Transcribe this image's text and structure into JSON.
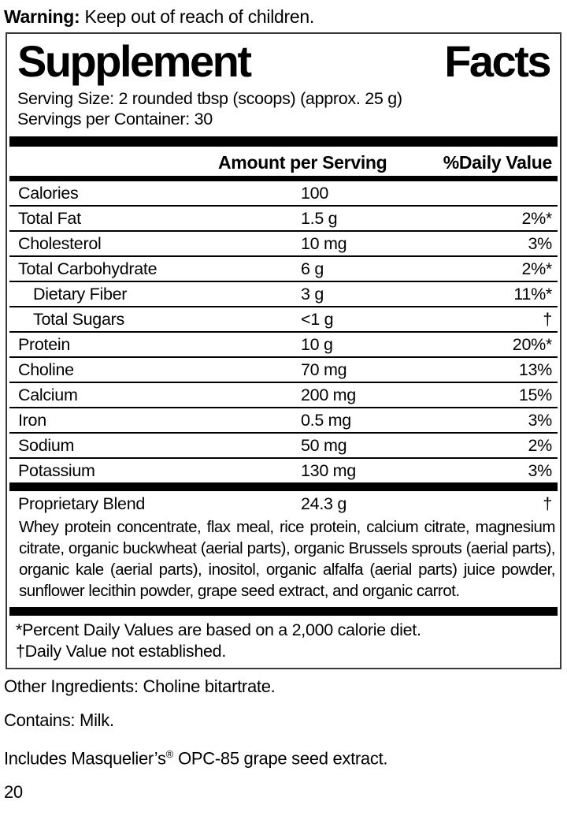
{
  "colors": {
    "text": "#000000",
    "bars": "#000000",
    "panel_border": "#3a3a3a",
    "background": "#ffffff"
  },
  "warning": {
    "label": "Warning:",
    "text": " Keep out of reach of children."
  },
  "panel": {
    "title_left": "Supplement",
    "title_right": "Facts",
    "serving_size": "Serving Size: 2 rounded tbsp (scoops) (approx. 25 g)",
    "servings_per_container": "Servings per Container: 30"
  },
  "table": {
    "header_amount": "Amount per Serving",
    "header_dv": "%Daily Value",
    "rows": [
      {
        "label": "Calories",
        "amount": "100",
        "dv": "",
        "indent": false
      },
      {
        "label": "Total Fat",
        "amount": "1.5 g",
        "dv": "2%*",
        "indent": false
      },
      {
        "label": "Cholesterol",
        "amount": "10 mg",
        "dv": "3%",
        "indent": false
      },
      {
        "label": "Total Carbohydrate",
        "amount": "6 g",
        "dv": "2%*",
        "indent": false
      },
      {
        "label": "Dietary Fiber",
        "amount": "3 g",
        "dv": "11%*",
        "indent": true
      },
      {
        "label": "Total Sugars",
        "amount": "<1 g",
        "dv": "†",
        "indent": true
      },
      {
        "label": "Protein",
        "amount": "10 g",
        "dv": "20%*",
        "indent": false
      },
      {
        "label": "Choline",
        "amount": "70 mg",
        "dv": "13%",
        "indent": false
      },
      {
        "label": "Calcium",
        "amount": "200 mg",
        "dv": "15%",
        "indent": false
      },
      {
        "label": "Iron",
        "amount": "0.5 mg",
        "dv": "3%",
        "indent": false
      },
      {
        "label": "Sodium",
        "amount": "50 mg",
        "dv": "2%",
        "indent": false
      },
      {
        "label": "Potassium",
        "amount": "130 mg",
        "dv": "3%",
        "indent": false
      }
    ],
    "proprietary_blend": {
      "label": "Proprietary Blend",
      "amount": "24.3 g",
      "dv": "†"
    },
    "blend_description": "Whey protein concentrate, flax meal, rice protein, calcium citrate, magnesium citrate, organic buckwheat (aerial parts), organic Brussels sprouts (aerial parts), organic kale (aerial parts), inositol, organic alfalfa (aerial parts) juice powder, sunflower lecithin powder, grape seed extract, and organic carrot.",
    "footnotes": [
      "*Percent Daily Values are based on a 2,000 calorie diet.",
      "†Daily Value not established."
    ]
  },
  "bottom": {
    "other_ingredients": "Other Ingredients: Choline bitartrate.",
    "contains": "Contains: Milk.",
    "includes_prefix": "Includes Masquelier’s",
    "includes_registered": "®",
    "includes_suffix": " OPC-85 grape seed extract.",
    "page_number": "20"
  }
}
